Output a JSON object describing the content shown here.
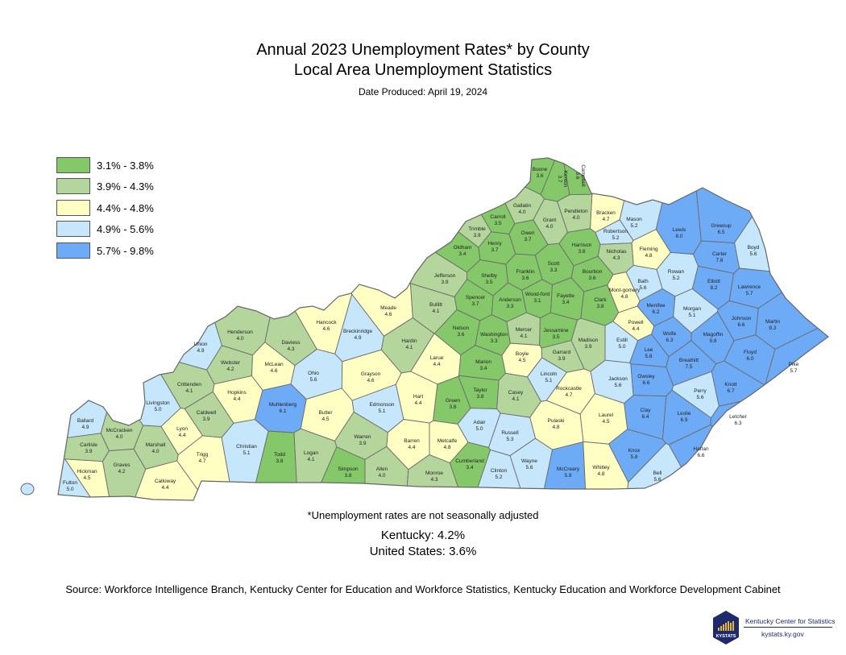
{
  "header": {
    "title": "Annual 2023 Unemployment Rates* by County",
    "subtitle": "Local Area Unemployment Statistics",
    "date_produced": "Date Produced:  April 19, 2024"
  },
  "legend": [
    {
      "label": "3.1% - 3.8%",
      "min": 3.1,
      "max": 3.8,
      "color": "#84c86a"
    },
    {
      "label": "3.9% - 4.3%",
      "min": 3.9,
      "max": 4.3,
      "color": "#b4d69c"
    },
    {
      "label": "4.4% - 4.8%",
      "min": 4.4,
      "max": 4.8,
      "color": "#ffffc3"
    },
    {
      "label": "4.9% - 5.6%",
      "min": 4.9,
      "max": 5.6,
      "color": "#c6e7fb"
    },
    {
      "label": "5.7% - 9.8%",
      "min": 5.7,
      "max": 9.8,
      "color": "#6eabf6"
    }
  ],
  "counties": [
    {
      "name": "Fulton",
      "rate": "5.0"
    },
    {
      "name": "Hickman",
      "rate": "4.5"
    },
    {
      "name": "Carlisle",
      "rate": "3.9"
    },
    {
      "name": "Ballard",
      "rate": "4.9"
    },
    {
      "name": "McCracken",
      "rate": "4.0"
    },
    {
      "name": "Graves",
      "rate": "4.2"
    },
    {
      "name": "Marshall",
      "rate": "4.0"
    },
    {
      "name": "Calloway",
      "rate": "4.4"
    },
    {
      "name": "Livingston",
      "rate": "5.0"
    },
    {
      "name": "Lyon",
      "rate": "4.4"
    },
    {
      "name": "Trigg",
      "rate": "4.7"
    },
    {
      "name": "Caldwell",
      "rate": "3.9"
    },
    {
      "name": "Crittenden",
      "rate": "4.1"
    },
    {
      "name": "Union",
      "rate": "4.9"
    },
    {
      "name": "Henderson",
      "rate": "4.0"
    },
    {
      "name": "Webster",
      "rate": "4.2"
    },
    {
      "name": "Hopkins",
      "rate": "4.4"
    },
    {
      "name": "Christian",
      "rate": "5.1"
    },
    {
      "name": "Todd",
      "rate": "3.8"
    },
    {
      "name": "Muhlenberg",
      "rate": "6.1"
    },
    {
      "name": "McLean",
      "rate": "4.6"
    },
    {
      "name": "Daviess",
      "rate": "4.3"
    },
    {
      "name": "Hancock",
      "rate": "4.6"
    },
    {
      "name": "Ohio",
      "rate": "5.6"
    },
    {
      "name": "Butler",
      "rate": "4.5"
    },
    {
      "name": "Logan",
      "rate": "4.1"
    },
    {
      "name": "Simpson",
      "rate": "3.8"
    },
    {
      "name": "Warren",
      "rate": "3.9"
    },
    {
      "name": "Allen",
      "rate": "4.0"
    },
    {
      "name": "Edmonson",
      "rate": "5.1"
    },
    {
      "name": "Grayson",
      "rate": "4.6"
    },
    {
      "name": "Breckinridge",
      "rate": "4.9"
    },
    {
      "name": "Meade",
      "rate": "4.6"
    },
    {
      "name": "Hardin",
      "rate": "4.1"
    },
    {
      "name": "Larue",
      "rate": "4.4"
    },
    {
      "name": "Hart",
      "rate": "4.4"
    },
    {
      "name": "Barren",
      "rate": "4.4"
    },
    {
      "name": "Monroe",
      "rate": "4.3"
    },
    {
      "name": "Metcalfe",
      "rate": "4.8"
    },
    {
      "name": "Green",
      "rate": "3.8"
    },
    {
      "name": "Taylor",
      "rate": "3.8"
    },
    {
      "name": "Adair",
      "rate": "5.0"
    },
    {
      "name": "Cumberland",
      "rate": "3.4"
    },
    {
      "name": "Clinton",
      "rate": "5.2"
    },
    {
      "name": "Russell",
      "rate": "5.3"
    },
    {
      "name": "Wayne",
      "rate": "5.6"
    },
    {
      "name": "McCreary",
      "rate": "5.9"
    },
    {
      "name": "Whitley",
      "rate": "4.8"
    },
    {
      "name": "Pulaski",
      "rate": "4.8"
    },
    {
      "name": "Casey",
      "rate": "4.1"
    },
    {
      "name": "Lincoln",
      "rate": "5.1"
    },
    {
      "name": "Rockcastle",
      "rate": "4.7"
    },
    {
      "name": "Laurel",
      "rate": "4.5"
    },
    {
      "name": "Knox",
      "rate": "5.8"
    },
    {
      "name": "Bell",
      "rate": "5.6"
    },
    {
      "name": "Jackson",
      "rate": "5.6"
    },
    {
      "name": "Clay",
      "rate": "6.4"
    },
    {
      "name": "Owsley",
      "rate": "6.6"
    },
    {
      "name": "Lee",
      "rate": "5.8"
    },
    {
      "name": "Estill",
      "rate": "5.0"
    },
    {
      "name": "Wolfe",
      "rate": "6.3"
    },
    {
      "name": "Powell",
      "rate": "4.4"
    },
    {
      "name": "Menifee",
      "rate": "6.2"
    },
    {
      "name": "Mont-gomery",
      "rate": "4.8"
    },
    {
      "name": "Bath",
      "rate": "5.6"
    },
    {
      "name": "Rowan",
      "rate": "5.2"
    },
    {
      "name": "Fleming",
      "rate": "4.8"
    },
    {
      "name": "Mason",
      "rate": "5.2"
    },
    {
      "name": "Robertson",
      "rate": "5.2"
    },
    {
      "name": "Nicholas",
      "rate": "4.3"
    },
    {
      "name": "Bracken",
      "rate": "4.7"
    },
    {
      "name": "Lewis",
      "rate": "8.0"
    },
    {
      "name": "Greenup",
      "rate": "6.5"
    },
    {
      "name": "Boyd",
      "rate": "5.6"
    },
    {
      "name": "Carter",
      "rate": "7.6"
    },
    {
      "name": "Elliott",
      "rate": "8.2"
    },
    {
      "name": "Lawrence",
      "rate": "5.7"
    },
    {
      "name": "Morgan",
      "rate": "5.1"
    },
    {
      "name": "Johnson",
      "rate": "6.6"
    },
    {
      "name": "Martin",
      "rate": "8.3"
    },
    {
      "name": "Magoffin",
      "rate": "9.8"
    },
    {
      "name": "Floyd",
      "rate": "6.0"
    },
    {
      "name": "Pike",
      "rate": "5.7"
    },
    {
      "name": "Breathitt",
      "rate": "7.5"
    },
    {
      "name": "Knott",
      "rate": "6.7"
    },
    {
      "name": "Perry",
      "rate": "5.6"
    },
    {
      "name": "Leslie",
      "rate": "6.9"
    },
    {
      "name": "Letcher",
      "rate": "6.3"
    },
    {
      "name": "Harlan",
      "rate": "6.6"
    },
    {
      "name": "Madison",
      "rate": "3.9"
    },
    {
      "name": "Garrard",
      "rate": "3.9"
    },
    {
      "name": "Boyle",
      "rate": "4.5"
    },
    {
      "name": "Mercer",
      "rate": "4.1"
    },
    {
      "name": "Jessamine",
      "rate": "3.5"
    },
    {
      "name": "Fayette",
      "rate": "3.4"
    },
    {
      "name": "Wood-ford",
      "rate": "3.1"
    },
    {
      "name": "Clark",
      "rate": "3.8"
    },
    {
      "name": "Bourbon",
      "rate": "3.6"
    },
    {
      "name": "Harrison",
      "rate": "3.8"
    },
    {
      "name": "Scott",
      "rate": "3.3"
    },
    {
      "name": "Franklin",
      "rate": "3.6"
    },
    {
      "name": "Anderson",
      "rate": "3.3"
    },
    {
      "name": "Washington",
      "rate": "3.3"
    },
    {
      "name": "Marion",
      "rate": "3.4"
    },
    {
      "name": "Nelson",
      "rate": "3.6"
    },
    {
      "name": "Spencer",
      "rate": "3.7"
    },
    {
      "name": "Shelby",
      "rate": "3.5"
    },
    {
      "name": "Bullitt",
      "rate": "4.1"
    },
    {
      "name": "Jefferson",
      "rate": "3.9"
    },
    {
      "name": "Oldham",
      "rate": "3.4"
    },
    {
      "name": "Henry",
      "rate": "3.7"
    },
    {
      "name": "Trimble",
      "rate": "3.9"
    },
    {
      "name": "Carroll",
      "rate": "3.5"
    },
    {
      "name": "Gallatin",
      "rate": "4.0"
    },
    {
      "name": "Owen",
      "rate": "3.7"
    },
    {
      "name": "Grant",
      "rate": "4.0"
    },
    {
      "name": "Pendleton",
      "rate": "4.0"
    },
    {
      "name": "Boone",
      "rate": "3.6"
    },
    {
      "name": "Kenton",
      "rate": "3.7"
    },
    {
      "name": "Campbell",
      "rate": "3.6"
    }
  ],
  "footnote": "*Unemployment rates are not seasonally adjusted",
  "summary": {
    "kentucky": "Kentucky: 4.2%",
    "united_states": "United States: 3.6%"
  },
  "source": "Source: Workforce Intelligence Branch, Kentucky Center for Education and Workforce Statistics, Kentucky Education and Workforce Development Cabinet",
  "logo": {
    "badge_text": "KYSTATS",
    "name": "Kentucky Center for Statistics",
    "url": "kystats.ky.gov",
    "color": "#1e2a6b"
  }
}
